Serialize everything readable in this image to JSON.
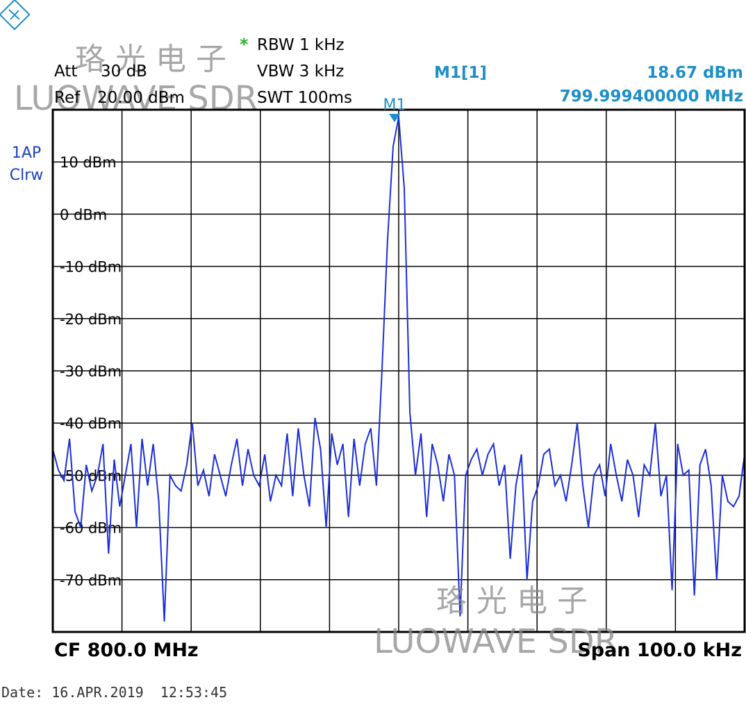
{
  "settings": {
    "att_label": "Att",
    "att": "30 dB",
    "ref_label": "Ref",
    "ref": "20.00 dBm",
    "rbw_flag": "*",
    "rbw": "RBW 1 kHz",
    "vbw": "VBW 3 kHz",
    "swt": "SWT 100ms"
  },
  "trace": {
    "label": "1AP",
    "mode": "Clrw"
  },
  "watermarks": [
    "珞光电子",
    "LUOWAVE SDR",
    "珞光电子",
    "LUOWAVE SDR"
  ],
  "footer": {
    "cf": "CF 800.0 MHz",
    "span": "Span 100.0 kHz"
  },
  "date": "Date: 16.APR.2019  12:53:45",
  "chart_data": {
    "type": "line",
    "color": "#1a2ed8",
    "grid": true,
    "xlim": [
      799.95,
      800.05
    ],
    "ylim": [
      -80,
      20
    ],
    "yticks": [
      {
        "value": 10,
        "label": "10 dBm"
      },
      {
        "value": 0,
        "label": "0 dBm"
      },
      {
        "value": -10,
        "label": "-10 dBm"
      },
      {
        "value": -20,
        "label": "-20 dBm"
      },
      {
        "value": -30,
        "label": "-30 dBm"
      },
      {
        "value": -40,
        "label": "-40 dBm"
      },
      {
        "value": -50,
        "label": "-50 dBm"
      },
      {
        "value": -60,
        "label": "-60 dBm"
      },
      {
        "value": -70,
        "label": "-70 dBm"
      }
    ],
    "values": [
      -45,
      -49,
      -51,
      -43,
      -57,
      -60,
      -48,
      -53,
      -50,
      -44,
      -65,
      -47,
      -56,
      -50,
      -44,
      -60,
      -43,
      -52,
      -44,
      -55,
      -78,
      -50,
      -52,
      -53,
      -48,
      -40,
      -52,
      -49,
      -54,
      -46,
      -50,
      -54,
      -48,
      -43,
      -52,
      -45,
      -50,
      -52,
      -46,
      -55,
      -50,
      -52,
      -42,
      -54,
      -41,
      -50,
      -56,
      -39,
      -45,
      -60,
      -42,
      -48,
      -44,
      -58,
      -43,
      -52,
      -44,
      -41,
      -52,
      -30,
      -5,
      13,
      18.6,
      5,
      -38,
      -50,
      -42,
      -58,
      -44,
      -48,
      -55,
      -46,
      -50,
      -77,
      -50,
      -47,
      -45,
      -50,
      -46,
      -44,
      -52,
      -48,
      -66,
      -52,
      -46,
      -70,
      -55,
      -52,
      -46,
      -45,
      -52,
      -50,
      -55,
      -48,
      -40,
      -52,
      -60,
      -50,
      -48,
      -54,
      -44,
      -50,
      -55,
      -47,
      -50,
      -58,
      -48,
      -50,
      -40,
      -54,
      -50,
      -72,
      -44,
      -50,
      -49,
      -73,
      -48,
      -45,
      -52,
      -70,
      -50,
      -55,
      -56,
      -54,
      -46
    ],
    "marker": {
      "name": "M1",
      "readout": "M1[1]",
      "color": "#1e8fc8",
      "x": 799.9994,
      "x_label": "799.999400000 MHz",
      "value": 18.67,
      "value_label": "18.67 dBm"
    }
  }
}
